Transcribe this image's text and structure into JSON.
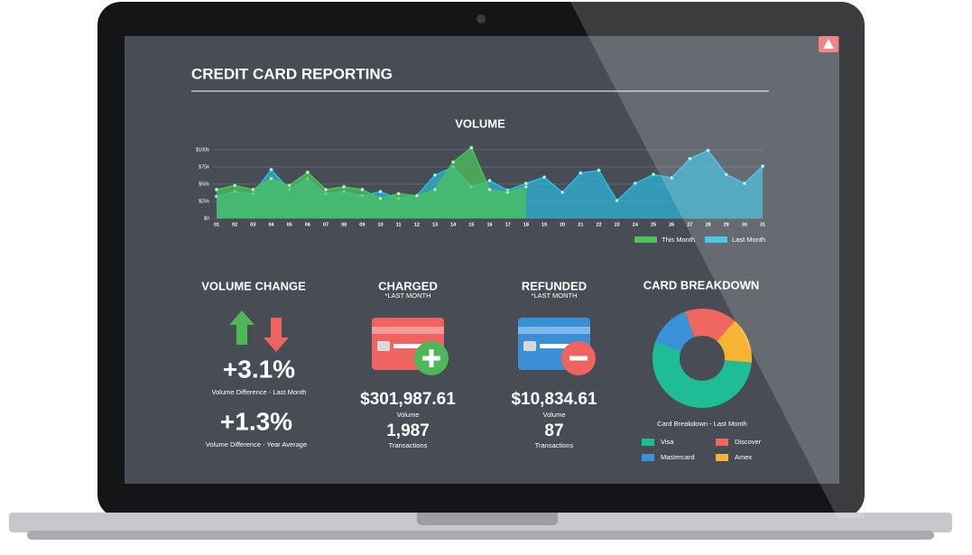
{
  "header": {
    "title": "CREDIT CARD REPORTING"
  },
  "volume_chart": {
    "type": "area",
    "title": "VOLUME",
    "categories": [
      "01",
      "02",
      "03",
      "04",
      "05",
      "06",
      "07",
      "08",
      "09",
      "10",
      "11",
      "12",
      "13",
      "14",
      "15",
      "16",
      "17",
      "18",
      "19",
      "20",
      "21",
      "22",
      "23",
      "24",
      "25",
      "26",
      "27",
      "28",
      "29",
      "30",
      "31"
    ],
    "series": [
      {
        "name": "This Month",
        "color": "#4cc35a",
        "values": [
          42000,
          48000,
          42000,
          58000,
          48000,
          67000,
          42000,
          46000,
          42000,
          29000,
          36000,
          33000,
          42000,
          82000,
          103000,
          42000,
          38000,
          46000,
          null,
          null,
          null,
          null,
          null,
          null,
          null,
          null,
          null,
          null,
          null,
          null,
          null
        ]
      },
      {
        "name": "Last Month",
        "color": "#2bbbe0",
        "values": [
          32000,
          39000,
          36000,
          71000,
          42000,
          58000,
          36000,
          39000,
          33000,
          39000,
          29000,
          33000,
          63000,
          75000,
          46000,
          55000,
          41000,
          51000,
          60000,
          38000,
          66000,
          70000,
          26000,
          51000,
          64000,
          59000,
          87000,
          99000,
          64000,
          51000,
          76000
        ]
      }
    ],
    "ylim": [
      0,
      100000
    ],
    "yticks": [
      {
        "value": 0,
        "label": "$0"
      },
      {
        "value": 25000,
        "label": "$25k"
      },
      {
        "value": 50000,
        "label": "$50k"
      },
      {
        "value": 75000,
        "label": "$75k"
      },
      {
        "value": 100000,
        "label": "$100k"
      }
    ],
    "grid": true
  },
  "volume_change": {
    "title": "VOLUME CHANGE",
    "items": [
      {
        "value": "+3.1%",
        "label": "Volume Difference - Last Month"
      },
      {
        "value": "+1.3%",
        "label": "Volume Difference - Year Average"
      }
    ]
  },
  "charged": {
    "title": "CHARGED",
    "note": "*LAST MONTH",
    "volume": "$301,987.61",
    "volume_label": "Volume",
    "transactions": "1,987",
    "transactions_label": "Transactions"
  },
  "refunded": {
    "title": "REFUNDED",
    "note": "*LAST MONTH",
    "volume": "$10,834.61",
    "volume_label": "Volume",
    "transactions": "87",
    "transactions_label": "Transactions"
  },
  "card_breakdown": {
    "type": "pie",
    "title": "CARD BREAKDOWN",
    "subtitle": "Card Breakdown - Last Month",
    "categories": [
      "Visa",
      "Mastercard",
      "Discover",
      "Amex"
    ],
    "values": [
      54,
      14,
      17,
      15
    ],
    "colors": [
      "#1fbc98",
      "#3a93d8",
      "#f0675f",
      "#f7b432"
    ]
  }
}
